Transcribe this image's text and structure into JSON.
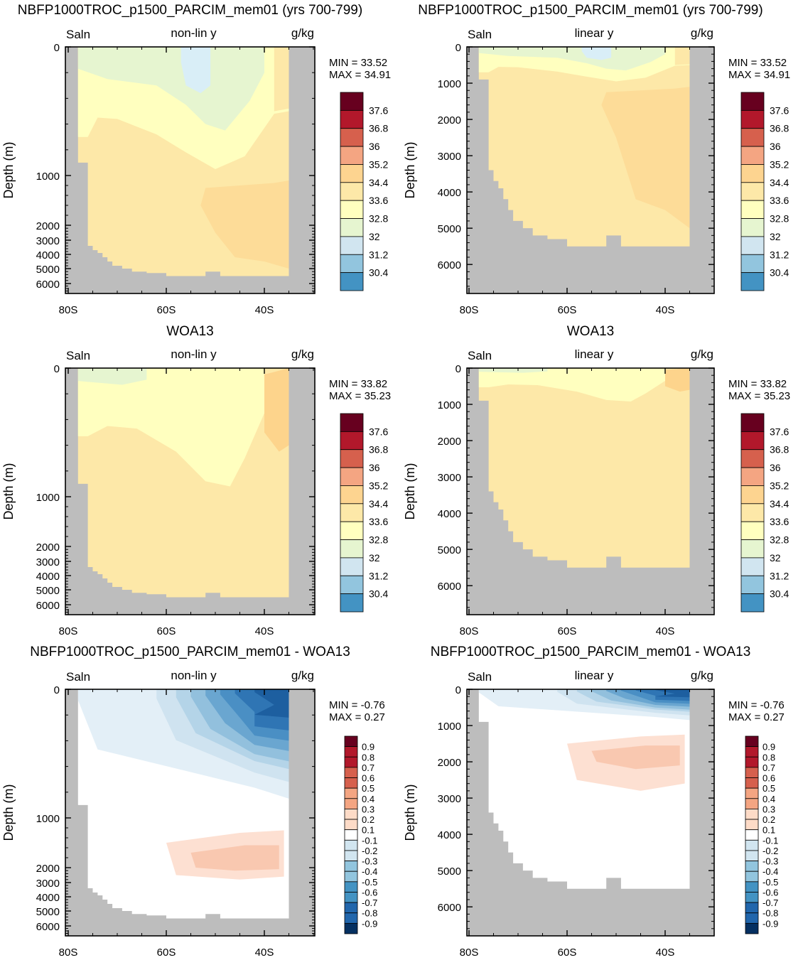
{
  "figure": {
    "variable": "Saln",
    "units": "g/kg",
    "ylabel": "Depth (m)",
    "depth_ticks_linear": [
      "0",
      "1000",
      "2000",
      "3000",
      "4000",
      "5000",
      "6000"
    ],
    "depth_ticks_nonlin": [
      "0",
      "1000",
      "2000",
      "3000",
      "4000",
      "5000",
      "6000"
    ],
    "lat_ticks": [
      "80S",
      "60S",
      "40S"
    ]
  },
  "chart_data": [
    {
      "type": "heatmap",
      "id": "model-nonlin",
      "title": "NBFP1000TROC_p1500_PARCIM_mem01 (yrs 700-799)",
      "mode": "non-lin y",
      "variable": "Saln",
      "units": "g/kg",
      "ylabel": "Depth (m)",
      "xlim": [
        "80S",
        "30S"
      ],
      "ylim": [
        6800,
        0
      ],
      "min_label": "MIN =  33.52",
      "max_label": "MAX =  34.91",
      "colorbar_labels": [
        "37.6",
        "36.8",
        "36",
        "35.2",
        "34.4",
        "33.6",
        "32.8",
        "32",
        "31.2",
        "30.4"
      ]
    },
    {
      "type": "heatmap",
      "id": "model-linear",
      "title": "NBFP1000TROC_p1500_PARCIM_mem01 (yrs 700-799)",
      "mode": "linear y",
      "variable": "Saln",
      "units": "g/kg",
      "ylabel": "Depth (m)",
      "xlim": [
        "80S",
        "30S"
      ],
      "ylim": [
        6800,
        0
      ],
      "min_label": "MIN =  33.52",
      "max_label": "MAX =  34.91",
      "colorbar_labels": [
        "37.6",
        "36.8",
        "36",
        "35.2",
        "34.4",
        "33.6",
        "32.8",
        "32",
        "31.2",
        "30.4"
      ]
    },
    {
      "type": "heatmap",
      "id": "obs-nonlin",
      "title": "WOA13",
      "mode": "non-lin y",
      "variable": "Saln",
      "units": "g/kg",
      "ylabel": "Depth (m)",
      "xlim": [
        "80S",
        "30S"
      ],
      "ylim": [
        6800,
        0
      ],
      "min_label": "MIN =  33.82",
      "max_label": "MAX =  35.23",
      "colorbar_labels": [
        "37.6",
        "36.8",
        "36",
        "35.2",
        "34.4",
        "33.6",
        "32.8",
        "32",
        "31.2",
        "30.4"
      ]
    },
    {
      "type": "heatmap",
      "id": "obs-linear",
      "title": "WOA13",
      "mode": "linear y",
      "variable": "Saln",
      "units": "g/kg",
      "ylabel": "Depth (m)",
      "xlim": [
        "80S",
        "30S"
      ],
      "ylim": [
        6800,
        0
      ],
      "min_label": "MIN =  33.82",
      "max_label": "MAX =  35.23",
      "colorbar_labels": [
        "37.6",
        "36.8",
        "36",
        "35.2",
        "34.4",
        "33.6",
        "32.8",
        "32",
        "31.2",
        "30.4"
      ]
    },
    {
      "type": "heatmap",
      "id": "diff-nonlin",
      "title": "NBFP1000TROC_p1500_PARCIM_mem01 - WOA13",
      "mode": "non-lin y",
      "variable": "Saln",
      "units": "g/kg",
      "ylabel": "Depth (m)",
      "xlim": [
        "80S",
        "30S"
      ],
      "ylim": [
        6800,
        0
      ],
      "min_label": "MIN = -0.76",
      "max_label": "MAX =  0.27",
      "colorbar_labels": [
        "0.9",
        "0.8",
        "0.7",
        "0.6",
        "0.5",
        "0.4",
        "0.3",
        "0.2",
        "0.1",
        "-0.1",
        "-0.2",
        "-0.3",
        "-0.4",
        "-0.5",
        "-0.6",
        "-0.7",
        "-0.8",
        "-0.9"
      ]
    },
    {
      "type": "heatmap",
      "id": "diff-linear",
      "title": "NBFP1000TROC_p1500_PARCIM_mem01 - WOA13",
      "mode": "linear y",
      "variable": "Saln",
      "units": "g/kg",
      "ylabel": "Depth (m)",
      "xlim": [
        "80S",
        "30S"
      ],
      "ylim": [
        6800,
        0
      ],
      "min_label": "MIN = -0.76",
      "max_label": "MAX =  0.27",
      "colorbar_labels": [
        "0.9",
        "0.8",
        "0.7",
        "0.6",
        "0.5",
        "0.4",
        "0.3",
        "0.2",
        "0.1",
        "-0.1",
        "-0.2",
        "-0.3",
        "-0.4",
        "-0.5",
        "-0.6",
        "-0.7",
        "-0.8",
        "-0.9"
      ]
    }
  ],
  "colors": {
    "land": "#bdbdbd",
    "salinity_scale": [
      "#67001f",
      "#b2182b",
      "#d6604d",
      "#f4a582",
      "#fdbf6f",
      "#fde8a8",
      "#ffffbf",
      "#e6f5d0",
      "#d1e5f0",
      "#92c5de",
      "#4393c3",
      "#2166ac",
      "#053061"
    ],
    "diff_scale": [
      "#67001f",
      "#b2182b",
      "#d6604d",
      "#f4a582",
      "#fddbc7",
      "#ffffff",
      "#d1e5f0",
      "#92c5de",
      "#4393c3",
      "#2166ac",
      "#053061"
    ]
  }
}
